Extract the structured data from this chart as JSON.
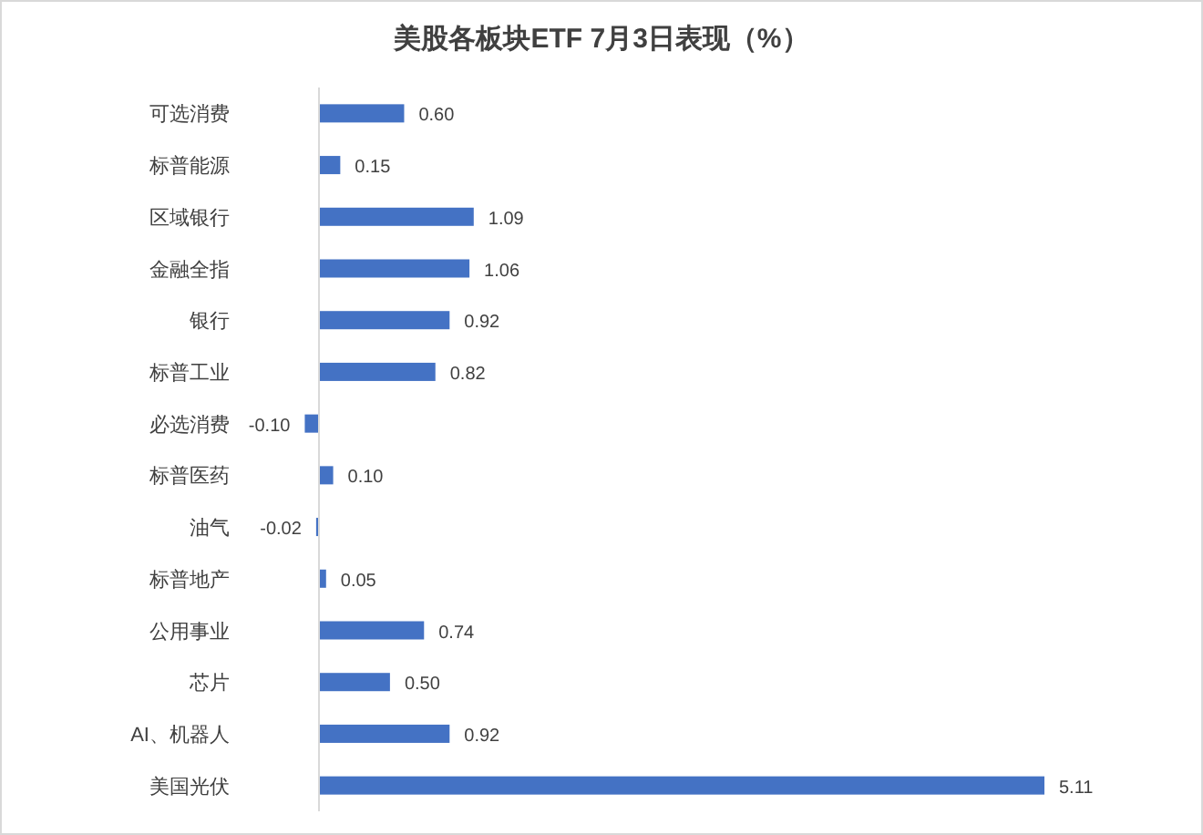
{
  "chart_data": {
    "type": "bar",
    "orientation": "horizontal",
    "title": "美股各板块ETF 7月3日表现（%）",
    "categories": [
      "可选消费",
      "标普能源",
      "区域银行",
      "金融全指",
      "银行",
      "标普工业",
      "必选消费",
      "标普医药",
      "油气",
      "标普地产",
      "公用事业",
      "芯片",
      "AI、机器人",
      "美国光伏"
    ],
    "values": [
      0.6,
      0.15,
      1.09,
      1.06,
      0.92,
      0.82,
      -0.1,
      0.1,
      -0.02,
      0.05,
      0.74,
      0.5,
      0.92,
      5.11
    ],
    "value_labels": [
      "0.60",
      "0.15",
      "1.09",
      "1.06",
      "0.92",
      "0.82",
      "-0.10",
      "0.10",
      "-0.02",
      "0.05",
      "0.74",
      "0.50",
      "0.92",
      "5.11"
    ],
    "color": "#4472c4"
  }
}
